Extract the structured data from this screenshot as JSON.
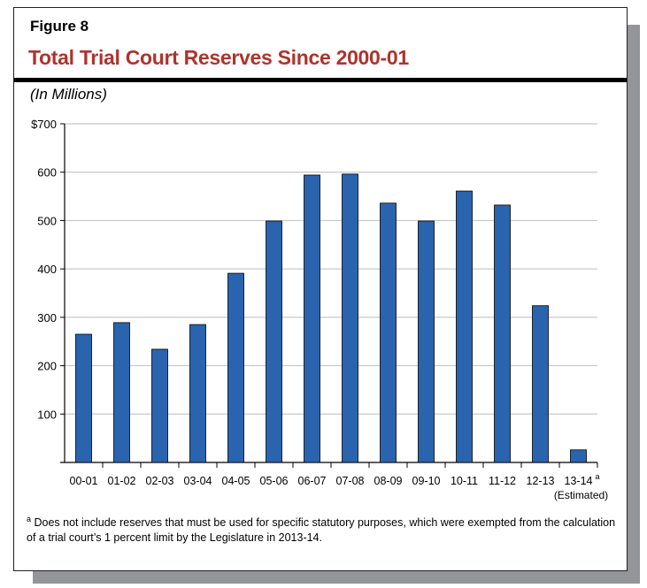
{
  "figure_label": "Figure 8",
  "title": "Total Trial Court Reserves Since 2000-01",
  "units": "(In Millions)",
  "footnote_marker": "a",
  "footnote": "Does not include reserves that must be used for specific statutory purposes, which were exempted from the calculation of a trial court’s 1 percent limit by the Legislature in 2013-14.",
  "chart_data": {
    "type": "bar",
    "title": "Total Trial Court Reserves Since 2000-01",
    "ylabel": "(In Millions)",
    "categories": [
      "00-01",
      "01-02",
      "02-03",
      "03-04",
      "04-05",
      "05-06",
      "06-07",
      "07-08",
      "08-09",
      "09-10",
      "10-11",
      "11-12",
      "12-13",
      "13-14"
    ],
    "category_superscripts": {
      "13-14": "a"
    },
    "category_notes": {
      "13-14": "(Estimated)"
    },
    "values": [
      265,
      289,
      234,
      285,
      391,
      499,
      594,
      596,
      536,
      499,
      561,
      532,
      324,
      26
    ],
    "ylim": [
      0,
      700
    ],
    "yticks": [
      100,
      200,
      300,
      400,
      500,
      600,
      700
    ],
    "ytick_labels": [
      "100",
      "200",
      "300",
      "400",
      "500",
      "600",
      "$700"
    ],
    "grid": true,
    "bar_color": "#2b64ae"
  }
}
